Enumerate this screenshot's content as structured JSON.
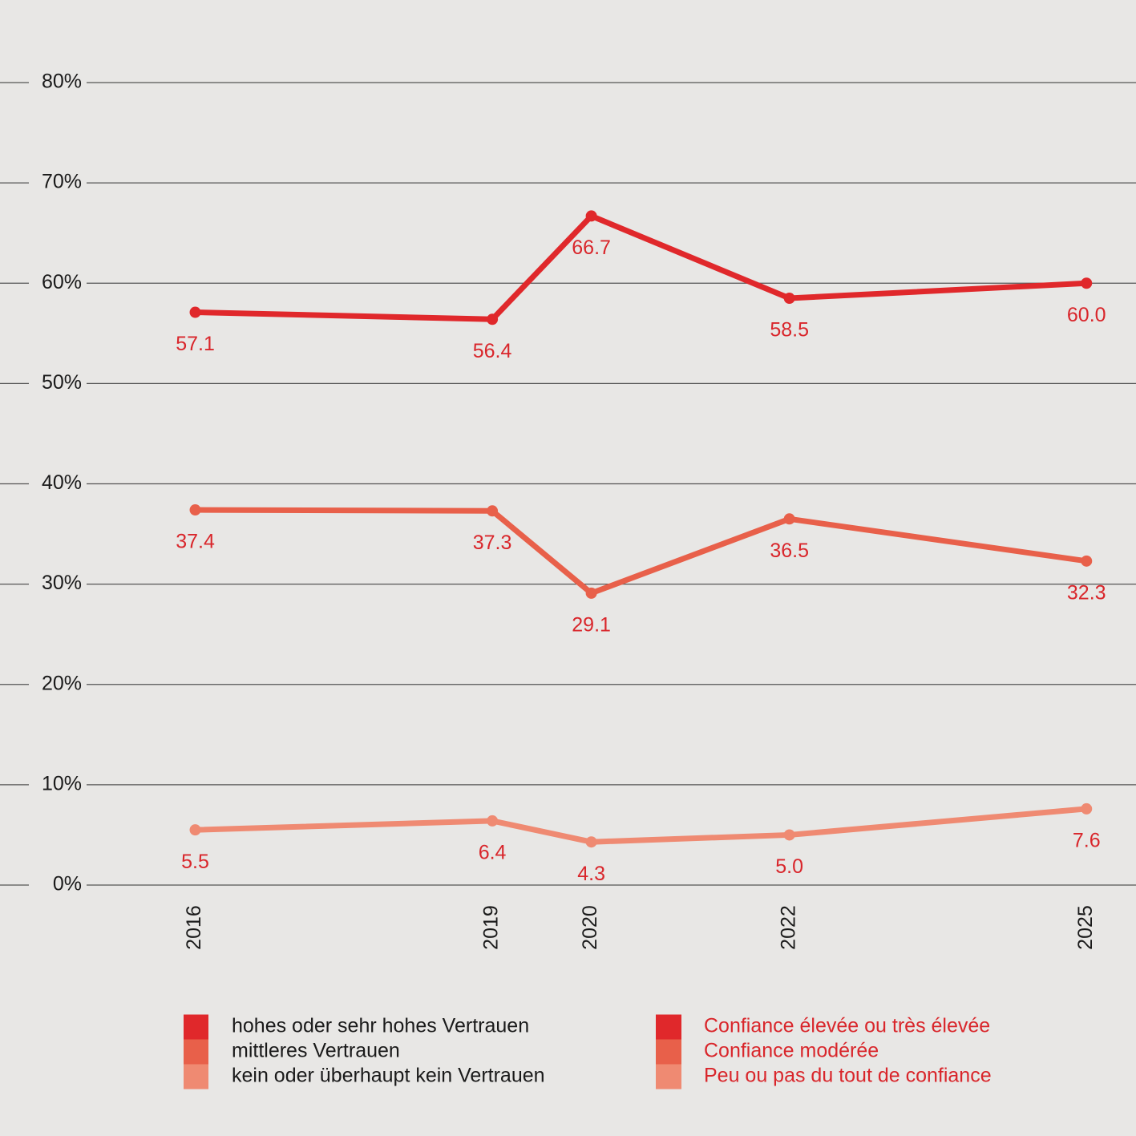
{
  "chart_data": {
    "type": "line",
    "x": [
      2016,
      2019,
      2020,
      2022,
      2025
    ],
    "xlim": [
      2015,
      2025.5
    ],
    "ylim": [
      0,
      80
    ],
    "yticks": [
      {
        "value": 0,
        "label": "0%"
      },
      {
        "value": 10,
        "label": "10%"
      },
      {
        "value": 20,
        "label": "20%"
      },
      {
        "value": 30,
        "label": "30%"
      },
      {
        "value": 40,
        "label": "40%"
      },
      {
        "value": 50,
        "label": "50%"
      },
      {
        "value": 60,
        "label": "60%"
      },
      {
        "value": 70,
        "label": "70%"
      },
      {
        "value": 80,
        "label": "80%"
      }
    ],
    "grid": true,
    "label_color": "#d9262b",
    "series": [
      {
        "name": "hohes oder sehr hohes Vertrauen",
        "name_fr": "Confiance élevée ou très élevée",
        "color": "#e0282b",
        "values": [
          57.1,
          56.4,
          66.7,
          58.5,
          60.0
        ],
        "value_labels": [
          "57.1",
          "56.4",
          "66.7",
          "58.5",
          "60.0"
        ]
      },
      {
        "name": "mittleres Vertrauen",
        "name_fr": "Confiance modérée",
        "color": "#e8604a",
        "values": [
          37.4,
          37.3,
          29.1,
          36.5,
          32.3
        ],
        "value_labels": [
          "37.4",
          "37.3",
          "29.1",
          "36.5",
          "32.3"
        ]
      },
      {
        "name": "kein oder überhaupt kein Vertrauen",
        "name_fr": "Peu ou pas du tout de confiance",
        "color": "#ef8a72",
        "values": [
          5.5,
          6.4,
          4.3,
          5.0,
          7.6
        ],
        "value_labels": [
          "5.5",
          "6.4",
          "4.3",
          "5.0",
          "7.6"
        ]
      }
    ]
  }
}
